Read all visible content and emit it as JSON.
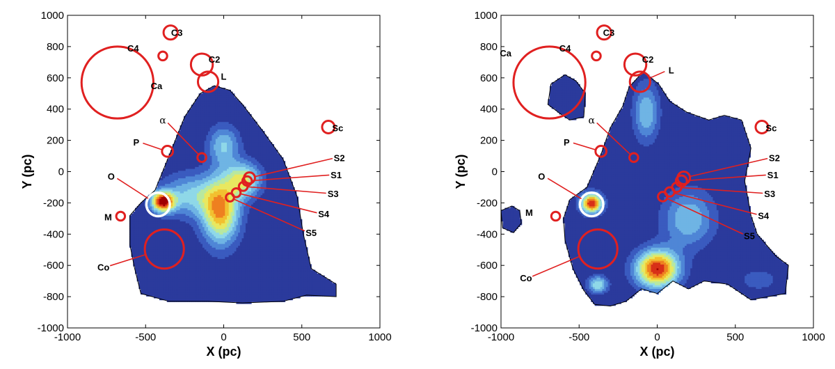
{
  "chart_data": [
    {
      "type": "contour",
      "panel": "left",
      "xlabel": "X (pc)",
      "ylabel": "Y (pc)",
      "xlim": [
        -1000,
        1000
      ],
      "ylim": [
        -1000,
        1000
      ],
      "xticks": [
        "-1000",
        "-500",
        "0",
        "500",
        "1000"
      ],
      "yticks": [
        "1000",
        "800",
        "600",
        "400",
        "200",
        "0",
        "-200",
        "-400",
        "-600",
        "-800",
        "-1000"
      ],
      "grid": false,
      "colormap": [
        "#2b3a9c",
        "#3a5bbf",
        "#4f86d6",
        "#6fb4e4",
        "#8fd8e8",
        "#b8e8a0",
        "#e8e860",
        "#f2c030",
        "#ee8020",
        "#d83018",
        "#a00000"
      ],
      "outline_polygon": [
        [
          -440,
          -120
        ],
        [
          -350,
          100
        ],
        [
          -250,
          350
        ],
        [
          -150,
          500
        ],
        [
          -60,
          550
        ],
        [
          40,
          520
        ],
        [
          120,
          430
        ],
        [
          250,
          260
        ],
        [
          380,
          80
        ],
        [
          470,
          -160
        ],
        [
          510,
          -400
        ],
        [
          560,
          -620
        ],
        [
          720,
          -720
        ],
        [
          720,
          -800
        ],
        [
          530,
          -790
        ],
        [
          380,
          -830
        ],
        [
          120,
          -840
        ],
        [
          -100,
          -830
        ],
        [
          -350,
          -830
        ],
        [
          -530,
          -780
        ],
        [
          -570,
          -620
        ],
        [
          -600,
          -470
        ],
        [
          -600,
          -280
        ],
        [
          -530,
          -200
        ]
      ],
      "blobs": [
        {
          "x": -390,
          "y": -190,
          "rx": 80,
          "ry": 70,
          "peak": 10
        },
        {
          "x": -20,
          "y": -250,
          "rx": 130,
          "ry": 230,
          "peak": 8
        },
        {
          "x": 130,
          "y": -50,
          "rx": 120,
          "ry": 120,
          "peak": 6
        },
        {
          "x": 0,
          "y": 170,
          "rx": 110,
          "ry": 140,
          "peak": 4
        },
        {
          "x": -220,
          "y": -150,
          "rx": 200,
          "ry": 150,
          "peak": 4
        }
      ],
      "markers": [
        {
          "label": "C3",
          "x": -340,
          "y": 890,
          "r": 45
        },
        {
          "label": "C4",
          "x": -390,
          "y": 740,
          "r": 28
        },
        {
          "label": "C2",
          "x": -140,
          "y": 685,
          "r": 70
        },
        {
          "label": "L",
          "x": -100,
          "y": 575,
          "r": 65
        },
        {
          "label": "Ca",
          "x": -680,
          "y": 570,
          "r": 230
        },
        {
          "label": "Sc",
          "x": 670,
          "y": 285,
          "r": 40
        },
        {
          "label": "α",
          "x": -140,
          "y": 90,
          "r": 28
        },
        {
          "label": "P",
          "x": -360,
          "y": 130,
          "r": 35
        },
        {
          "label": "O",
          "x": -420,
          "y": -210,
          "r": 75,
          "white": true
        },
        {
          "label": "M",
          "x": -660,
          "y": -285,
          "r": 28
        },
        {
          "label": "Co",
          "x": -380,
          "y": -495,
          "r": 125
        },
        {
          "label": "S2",
          "x": 165,
          "y": -40,
          "r": 35
        },
        {
          "label": "S1",
          "x": 150,
          "y": -60,
          "r": 30
        },
        {
          "label": "S3",
          "x": 125,
          "y": -95,
          "r": 28
        },
        {
          "label": "S4",
          "x": 80,
          "y": -135,
          "r": 28
        },
        {
          "label": "S5",
          "x": 40,
          "y": -165,
          "r": 26
        }
      ],
      "label_positions": [
        {
          "label": "C3",
          "x": -300,
          "y": 890,
          "lx": -300,
          "ly": 890,
          "leader": false
        },
        {
          "label": "C4",
          "x": -580,
          "y": 790,
          "leader": false
        },
        {
          "label": "C2",
          "x": -60,
          "y": 720,
          "leader": false
        },
        {
          "label": "L",
          "x": 0,
          "y": 610,
          "leader": false
        },
        {
          "label": "Ca",
          "x": -430,
          "y": 550,
          "leader": false
        },
        {
          "label": "Sc",
          "x": 730,
          "y": 280,
          "leader": false
        },
        {
          "label": "α",
          "x": -390,
          "y": 330,
          "leader": true
        },
        {
          "label": "P",
          "x": -560,
          "y": 190,
          "leader": true
        },
        {
          "label": "O",
          "x": -720,
          "y": -30,
          "leader": true
        },
        {
          "label": "M",
          "x": -740,
          "y": -290,
          "leader": false
        },
        {
          "label": "Co",
          "x": -770,
          "y": -610,
          "leader": true
        },
        {
          "label": "S2",
          "x": 740,
          "y": 90,
          "leader": true
        },
        {
          "label": "S1",
          "x": 720,
          "y": -20,
          "leader": true
        },
        {
          "label": "S3",
          "x": 700,
          "y": -140,
          "leader": true
        },
        {
          "label": "S4",
          "x": 640,
          "y": -270,
          "leader": true
        },
        {
          "label": "S5",
          "x": 560,
          "y": -390,
          "leader": true
        }
      ]
    },
    {
      "type": "contour",
      "panel": "right",
      "xlabel": "X (pc)",
      "ylabel": "Y (pc)",
      "xlim": [
        -1000,
        1000
      ],
      "ylim": [
        -1000,
        1000
      ],
      "xticks": [
        "-1000",
        "-500",
        "0",
        "500",
        "1000"
      ],
      "yticks": [
        "1000",
        "800",
        "600",
        "400",
        "200",
        "0",
        "-200",
        "-400",
        "-600",
        "-800",
        "-1000"
      ],
      "grid": false,
      "colormap": [
        "#2b3a9c",
        "#3a5bbf",
        "#4f86d6",
        "#6fb4e4",
        "#8fd8e8",
        "#b8e8a0",
        "#e8e860",
        "#f2c030",
        "#ee8020",
        "#d83018",
        "#a00000"
      ],
      "outline_polygon": [
        [
          -450,
          -100
        ],
        [
          -360,
          110
        ],
        [
          -300,
          280
        ],
        [
          -220,
          420
        ],
        [
          -180,
          540
        ],
        [
          -90,
          640
        ],
        [
          10,
          560
        ],
        [
          80,
          450
        ],
        [
          190,
          380
        ],
        [
          330,
          330
        ],
        [
          430,
          360
        ],
        [
          540,
          330
        ],
        [
          600,
          150
        ],
        [
          560,
          -60
        ],
        [
          600,
          -280
        ],
        [
          640,
          -400
        ],
        [
          760,
          -540
        ],
        [
          840,
          -600
        ],
        [
          820,
          -780
        ],
        [
          600,
          -820
        ],
        [
          450,
          -720
        ],
        [
          300,
          -700
        ],
        [
          200,
          -750
        ],
        [
          100,
          -700
        ],
        [
          0,
          -780
        ],
        [
          -100,
          -750
        ],
        [
          -200,
          -830
        ],
        [
          -300,
          -860
        ],
        [
          -400,
          -850
        ],
        [
          -470,
          -760
        ],
        [
          -540,
          -620
        ],
        [
          -590,
          -440
        ],
        [
          -600,
          -300
        ],
        [
          -560,
          -180
        ]
      ],
      "islands": [
        [
          [
            -680,
            560
          ],
          [
            -590,
            620
          ],
          [
            -520,
            580
          ],
          [
            -460,
            500
          ],
          [
            -470,
            350
          ],
          [
            -560,
            330
          ],
          [
            -620,
            370
          ],
          [
            -700,
            430
          ]
        ],
        [
          [
            -1000,
            -250
          ],
          [
            -930,
            -220
          ],
          [
            -880,
            -250
          ],
          [
            -870,
            -330
          ],
          [
            -920,
            -390
          ],
          [
            -990,
            -360
          ]
        ]
      ],
      "blobs": [
        {
          "x": -420,
          "y": -200,
          "rx": 75,
          "ry": 70,
          "peak": 10
        },
        {
          "x": 0,
          "y": -620,
          "rx": 150,
          "ry": 130,
          "peak": 10
        },
        {
          "x": -70,
          "y": 380,
          "rx": 90,
          "ry": 200,
          "peak": 4
        },
        {
          "x": 200,
          "y": -300,
          "rx": 180,
          "ry": 200,
          "peak": 4
        },
        {
          "x": -380,
          "y": -720,
          "rx": 70,
          "ry": 60,
          "peak": 5
        },
        {
          "x": 650,
          "y": -690,
          "rx": 120,
          "ry": 70,
          "peak": 2
        }
      ],
      "markers": [
        {
          "label": "C3",
          "x": -340,
          "y": 890,
          "r": 45
        },
        {
          "label": "C4",
          "x": -390,
          "y": 740,
          "r": 28
        },
        {
          "label": "C2",
          "x": -140,
          "y": 685,
          "r": 70
        },
        {
          "label": "L",
          "x": -110,
          "y": 575,
          "r": 65
        },
        {
          "label": "Ca",
          "x": -690,
          "y": 570,
          "r": 230
        },
        {
          "label": "Sc",
          "x": 670,
          "y": 285,
          "r": 40
        },
        {
          "label": "α",
          "x": -150,
          "y": 90,
          "r": 28
        },
        {
          "label": "P",
          "x": -360,
          "y": 130,
          "r": 35
        },
        {
          "label": "O",
          "x": -420,
          "y": -210,
          "r": 75,
          "white": true
        },
        {
          "label": "M",
          "x": -650,
          "y": -285,
          "r": 28
        },
        {
          "label": "Co",
          "x": -380,
          "y": -495,
          "r": 125
        },
        {
          "label": "S2",
          "x": 170,
          "y": -40,
          "r": 40
        },
        {
          "label": "S1",
          "x": 155,
          "y": -60,
          "r": 35
        },
        {
          "label": "S3",
          "x": 125,
          "y": -100,
          "r": 30
        },
        {
          "label": "S4",
          "x": 80,
          "y": -130,
          "r": 30
        },
        {
          "label": "S5",
          "x": 35,
          "y": -160,
          "r": 30
        }
      ],
      "label_positions": [
        {
          "label": "Ca",
          "x": -970,
          "y": 760,
          "leader": false
        },
        {
          "label": "C3",
          "x": -310,
          "y": 890,
          "leader": false
        },
        {
          "label": "C4",
          "x": -590,
          "y": 790,
          "leader": false
        },
        {
          "label": "C2",
          "x": -60,
          "y": 720,
          "leader": false
        },
        {
          "label": "L",
          "x": 90,
          "y": 650,
          "leader": true
        },
        {
          "label": "Sc",
          "x": 730,
          "y": 280,
          "leader": false
        },
        {
          "label": "α",
          "x": -420,
          "y": 330,
          "leader": true
        },
        {
          "label": "P",
          "x": -580,
          "y": 190,
          "leader": true
        },
        {
          "label": "O",
          "x": -740,
          "y": -30,
          "leader": true
        },
        {
          "label": "M",
          "x": -820,
          "y": -260,
          "leader": false
        },
        {
          "label": "Co",
          "x": -840,
          "y": -680,
          "leader": true
        },
        {
          "label": "S2",
          "x": 750,
          "y": 90,
          "leader": true
        },
        {
          "label": "S1",
          "x": 740,
          "y": -20,
          "leader": true
        },
        {
          "label": "S3",
          "x": 720,
          "y": -140,
          "leader": true
        },
        {
          "label": "S4",
          "x": 680,
          "y": -280,
          "leader": true
        },
        {
          "label": "S5",
          "x": 590,
          "y": -410,
          "leader": true
        }
      ]
    }
  ]
}
